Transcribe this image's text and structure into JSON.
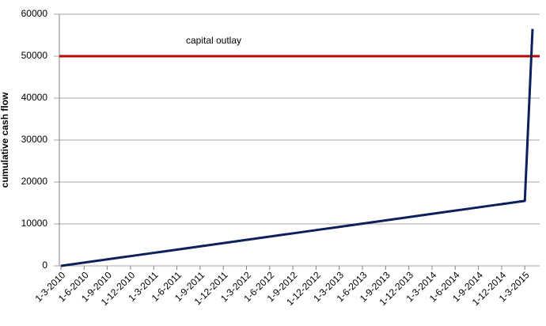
{
  "chart_data": {
    "type": "line",
    "y_label": "cumulative cash flow",
    "categories": [
      "1-3-2010",
      null,
      null,
      "1-6-2010",
      null,
      null,
      "1-9-2010",
      null,
      null,
      "1-12-2010",
      null,
      null,
      "1-3-2011",
      null,
      null,
      "1-6-2011",
      null,
      null,
      "1-9-2011",
      null,
      null,
      "1-12-2011",
      null,
      null,
      "1-3-2012",
      null,
      null,
      "1-6-2012",
      null,
      null,
      "1-9-2012",
      null,
      null,
      "1-12-2012",
      null,
      null,
      "1-3-2013",
      null,
      null,
      "1-6-2013",
      null,
      null,
      "1-9-2013",
      null,
      null,
      "1-12-2013",
      null,
      null,
      "1-3-2014",
      null,
      null,
      "1-6-2014",
      null,
      null,
      "1-9-2014",
      null,
      null,
      "1-12-2014",
      null,
      null,
      "1-3-2015",
      null
    ],
    "series": [
      {
        "color": "#0d1f5c",
        "values": [
          0,
          258,
          517,
          775,
          1033,
          1292,
          1550,
          1808,
          2067,
          2325,
          2583,
          2842,
          3100,
          3358,
          3617,
          3875,
          4133,
          4392,
          4650,
          4908,
          5167,
          5425,
          5683,
          5942,
          6200,
          6458,
          6717,
          6975,
          7233,
          7492,
          7750,
          8008,
          8267,
          8525,
          8783,
          9042,
          9300,
          9558,
          9817,
          10075,
          10333,
          10592,
          10850,
          11108,
          11367,
          11625,
          11883,
          12142,
          12400,
          12658,
          12917,
          13175,
          13433,
          13692,
          13950,
          14208,
          14467,
          14725,
          14983,
          15242,
          15500,
          56500
        ]
      }
    ],
    "reference_line": {
      "label": "capital outlay",
      "value": 50000,
      "color": "#c00000"
    },
    "ylim": [
      0,
      60000
    ],
    "yticks": [
      0,
      10000,
      20000,
      30000,
      40000,
      50000,
      60000
    ],
    "grid": true
  }
}
